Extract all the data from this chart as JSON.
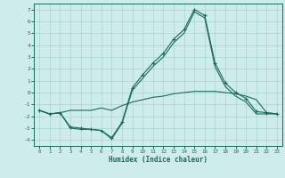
{
  "xlabel": "Humidex (Indice chaleur)",
  "bg_color": "#cdecea",
  "grid_color": "#a8d5d1",
  "line_color": "#1a6b5a",
  "xlim": [
    -0.5,
    23.5
  ],
  "ylim": [
    -4.5,
    7.5
  ],
  "xticks": [
    0,
    1,
    2,
    3,
    4,
    5,
    6,
    7,
    8,
    9,
    10,
    11,
    12,
    13,
    14,
    15,
    16,
    17,
    18,
    19,
    20,
    21,
    22,
    23
  ],
  "yticks": [
    -4,
    -3,
    -2,
    -1,
    0,
    1,
    2,
    3,
    4,
    5,
    6,
    7
  ],
  "line1_x": [
    0,
    1,
    2,
    3,
    4,
    5,
    6,
    7,
    8,
    9,
    10,
    11,
    12,
    13,
    14,
    15,
    16,
    17,
    18,
    19,
    20,
    21,
    22,
    23
  ],
  "line1_y": [
    -1.5,
    -1.8,
    -1.7,
    -1.5,
    -1.5,
    -1.5,
    -1.3,
    -1.5,
    -1.1,
    -0.8,
    -0.6,
    -0.4,
    -0.3,
    -0.1,
    0.0,
    0.1,
    0.1,
    0.1,
    0.0,
    -0.1,
    -0.3,
    -0.6,
    -1.7,
    -1.8
  ],
  "line2_x": [
    0,
    1,
    2,
    3,
    4,
    5,
    6,
    7,
    8,
    9,
    10,
    11,
    12,
    13,
    14,
    15,
    16,
    17,
    18,
    19,
    20,
    21,
    22,
    23
  ],
  "line2_y": [
    -1.5,
    -1.8,
    -1.7,
    -2.9,
    -3.0,
    -3.1,
    -3.2,
    -3.8,
    -2.5,
    0.4,
    1.5,
    2.5,
    3.3,
    4.5,
    5.3,
    7.0,
    6.5,
    2.5,
    0.8,
    0.0,
    -0.5,
    -1.6,
    -1.7,
    -1.8
  ],
  "line3_x": [
    0,
    1,
    2,
    3,
    4,
    5,
    6,
    7,
    8,
    9,
    10,
    11,
    12,
    13,
    14,
    15,
    16,
    17,
    18,
    19,
    20,
    21,
    22,
    23
  ],
  "line3_y": [
    -1.5,
    -1.8,
    -1.7,
    -3.0,
    -3.1,
    -3.1,
    -3.2,
    -3.9,
    -2.6,
    0.2,
    1.2,
    2.2,
    3.0,
    4.2,
    5.0,
    6.8,
    6.3,
    2.2,
    0.5,
    -0.3,
    -0.8,
    -1.8,
    -1.8,
    -1.8
  ]
}
